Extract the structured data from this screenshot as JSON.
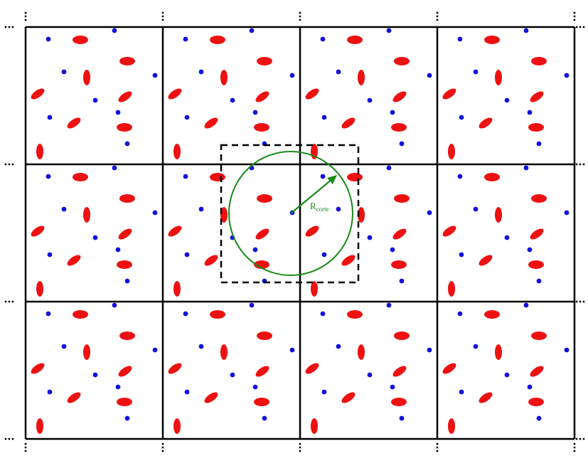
{
  "figure": {
    "cutoff_label_main": "R",
    "cutoff_label_sub": "corte",
    "grid": {
      "rows": 3,
      "cols": 4
    },
    "colors": {
      "cell_border": "#000000",
      "molecule": "#ee1111",
      "atom": "#1111dd",
      "cutoff": "#1a8a1a",
      "dashed_box": "#000000"
    }
  }
}
